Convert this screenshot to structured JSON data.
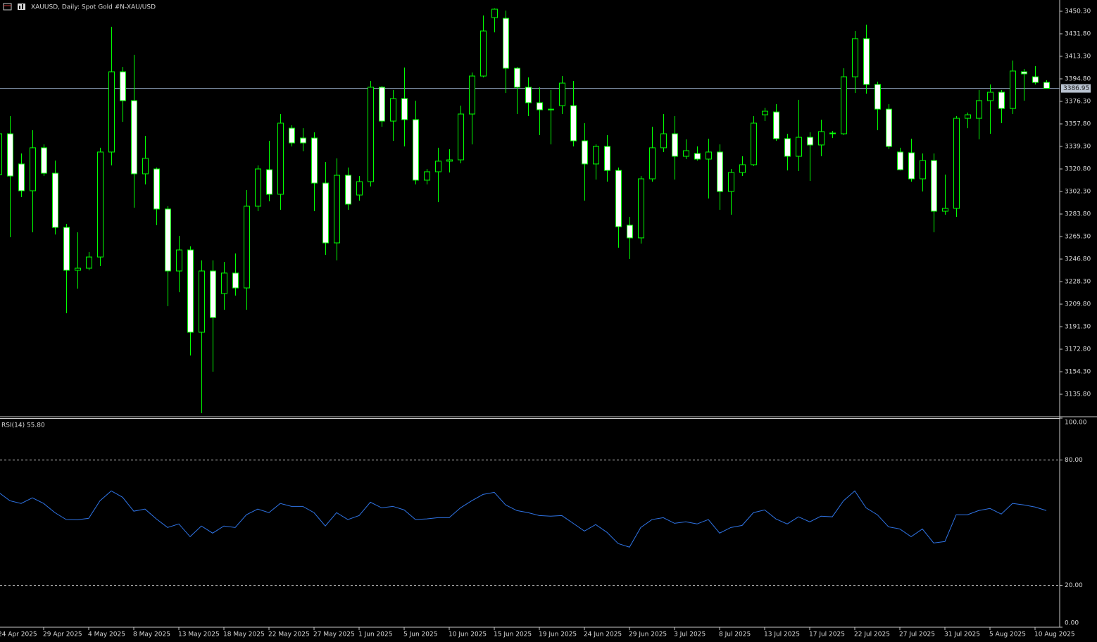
{
  "chart_data": [
    {
      "type": "candlestick",
      "title": "XAUUSD, Daily:  Spot Gold #N-XAU/USD",
      "categories": [
        "24 Apr 2025",
        null,
        null,
        null,
        "29 Apr 2025",
        null,
        null,
        null,
        "4 May 2025",
        null,
        null,
        null,
        "8 May 2025",
        null,
        null,
        null,
        "13 May 2025",
        null,
        null,
        null,
        "18 May 2025",
        null,
        null,
        null,
        "22 May 2025",
        null,
        null,
        null,
        "27 May 2025",
        null,
        null,
        null,
        "1 Jun 2025",
        null,
        null,
        null,
        "5 Jun 2025",
        null,
        null,
        null,
        "10 Jun 2025",
        null,
        null,
        null,
        "15 Jun 2025",
        null,
        null,
        null,
        "19 Jun 2025",
        null,
        null,
        null,
        "24 Jun 2025",
        null,
        null,
        null,
        "29 Jun 2025",
        null,
        null,
        null,
        "3 Jul 2025",
        null,
        null,
        null,
        "8 Jul 2025",
        null,
        null,
        null,
        "13 Jul 2025",
        null,
        null,
        null,
        "17 Jul 2025",
        null,
        null,
        null,
        "22 Jul 2025",
        null,
        null,
        null,
        "27 Jul 2025",
        null,
        null,
        null,
        "31 Jul 2025",
        null,
        null,
        null,
        "5 Aug 2025",
        null,
        null,
        null,
        "10 Aug 2025",
        null
      ],
      "open": [
        3316.2,
        3349.7,
        3324.9,
        3302.9,
        3338.2,
        3317.3,
        3272.8,
        3237.6,
        3239.3,
        3248.5,
        3334.7,
        3400.6,
        3376.9,
        3316.8,
        3320.8,
        3287.9,
        3237.0,
        3254.3,
        3186.7,
        3237.0,
        3218.5,
        3235.3,
        3223.1,
        3290.2,
        3320.2,
        3300.0,
        3354.3,
        3346.2,
        3346.2,
        3309.2,
        3260.1,
        3315.6,
        3299.4,
        3310.4,
        3387.9,
        3360.1,
        3378.6,
        3361.3,
        3311.6,
        3318.5,
        3327.2,
        3328.3,
        3365.9,
        3397.1,
        3445.1,
        3444.5,
        3403.5,
        3387.9,
        3375.2,
        3369.9,
        3372.8,
        3372.8,
        3343.9,
        3324.9,
        3339.3,
        3319.6,
        3274.6,
        3264.2,
        3312.7,
        3338.2,
        3349.7,
        3331.2,
        3333.5,
        3328.9,
        3334.7,
        3302.3,
        3317.9,
        3324.3,
        3365.3,
        3367.6,
        3345.7,
        3331.2,
        3346.8,
        3340.5,
        3350.3,
        3349.7,
        3396.5,
        3427.8,
        3390.2,
        3369.9,
        3334.7,
        3334.1,
        3312.7,
        3327.7,
        3286.1,
        3288.4,
        3362.4,
        3362.4,
        3376.9,
        3383.8,
        3370.5,
        3400.6,
        3396.5,
        3391.9
      ],
      "high": [
        3352.6,
        3364.2,
        3333.5,
        3352.6,
        3341.0,
        3327.7,
        3275.7,
        3268.8,
        3252.6,
        3338.2,
        3437.6,
        3404.6,
        3414.5,
        3348.0,
        3322.0,
        3290.2,
        3265.9,
        3257.2,
        3245.7,
        3245.7,
        3244.5,
        3251.4,
        3303.5,
        3323.7,
        3343.9,
        3365.9,
        3356.7,
        3354.3,
        3350.9,
        3326.6,
        3329.5,
        3322.0,
        3315.0,
        3393.1,
        3389.0,
        3385.6,
        3404.1,
        3376.9,
        3320.8,
        3338.2,
        3337.0,
        3372.8,
        3400.0,
        3446.8,
        3452.6,
        3450.9,
        3404.6,
        3396.0,
        3387.9,
        3385.6,
        3397.1,
        3393.1,
        3358.4,
        3341.0,
        3348.6,
        3322.0,
        3281.5,
        3315.0,
        3355.5,
        3365.9,
        3364.2,
        3345.1,
        3339.3,
        3345.7,
        3341.0,
        3320.8,
        3331.2,
        3364.2,
        3371.1,
        3374.0,
        3349.7,
        3377.5,
        3350.9,
        3361.3,
        3352.0,
        3403.5,
        3434.1,
        3439.3,
        3392.5,
        3374.0,
        3338.2,
        3345.7,
        3333.5,
        3333.5,
        3316.2,
        3364.2,
        3367.1,
        3385.6,
        3390.2,
        3385.6,
        3409.8,
        3402.9,
        3405.2,
        3393.7
      ],
      "low": [
        3312.1,
        3264.7,
        3297.7,
        3268.8,
        3315.0,
        3267.0,
        3202.3,
        3222.5,
        3237.6,
        3241.0,
        3323.7,
        3359.5,
        3289.0,
        3308.1,
        3274.6,
        3208.1,
        3219.6,
        3167.6,
        3120.2,
        3154.3,
        3205.2,
        3216.8,
        3205.2,
        3286.1,
        3294.2,
        3287.3,
        3339.3,
        3335.3,
        3286.1,
        3250.3,
        3245.7,
        3287.3,
        3294.8,
        3306.4,
        3355.5,
        3343.9,
        3339.3,
        3308.1,
        3308.1,
        3293.6,
        3317.9,
        3325.4,
        3341.0,
        3396.0,
        3433.0,
        3383.2,
        3365.9,
        3364.2,
        3348.6,
        3341.0,
        3365.9,
        3339.3,
        3294.8,
        3312.1,
        3310.4,
        3256.1,
        3246.8,
        3259.5,
        3310.4,
        3334.7,
        3312.1,
        3328.9,
        3327.7,
        3296.5,
        3287.3,
        3283.2,
        3315.0,
        3323.1,
        3360.1,
        3343.9,
        3319.6,
        3319.1,
        3311.0,
        3331.2,
        3346.2,
        3348.6,
        3383.2,
        3382.7,
        3352.6,
        3337.0,
        3319.6,
        3310.4,
        3302.3,
        3268.8,
        3283.2,
        3281.5,
        3354.3,
        3345.1,
        3349.7,
        3358.4,
        3365.9,
        3376.9,
        3390.2,
        3387.3
      ],
      "close": [
        3349.7,
        3315.0,
        3302.9,
        3338.2,
        3317.3,
        3272.8,
        3237.6,
        3239.3,
        3248.5,
        3334.7,
        3400.6,
        3376.9,
        3316.8,
        3329.5,
        3287.9,
        3237.0,
        3254.3,
        3186.7,
        3237.0,
        3198.8,
        3235.3,
        3223.1,
        3290.2,
        3320.8,
        3300.0,
        3358.4,
        3342.2,
        3342.2,
        3309.2,
        3260.1,
        3315.6,
        3291.9,
        3310.4,
        3387.9,
        3360.1,
        3378.6,
        3361.3,
        3311.6,
        3318.5,
        3327.2,
        3328.3,
        3365.9,
        3397.1,
        3434.1,
        3452.0,
        3403.5,
        3387.9,
        3375.2,
        3369.4,
        3369.4,
        3391.3,
        3343.9,
        3324.9,
        3339.3,
        3319.6,
        3273.4,
        3264.2,
        3312.7,
        3338.2,
        3349.7,
        3331.2,
        3335.8,
        3328.9,
        3334.7,
        3302.3,
        3317.9,
        3324.3,
        3358.4,
        3368.2,
        3345.7,
        3331.2,
        3346.8,
        3340.5,
        3351.5,
        3349.7,
        3396.5,
        3427.8,
        3390.2,
        3369.9,
        3339.3,
        3320.2,
        3312.7,
        3327.7,
        3286.1,
        3288.4,
        3362.4,
        3365.3,
        3376.9,
        3383.8,
        3370.5,
        3401.2,
        3398.9,
        3391.9,
        3386.95
      ],
      "up_color": "#000000",
      "down_color": "#ffffff",
      "wick_color": "#00ff00",
      "current_price": 3386.95,
      "price_line_color": "#8a9bb4",
      "ylim": [
        3117.9,
        3459.55
      ],
      "yticks": [
        {
          "value": 3450.3,
          "label": "3450.30"
        },
        {
          "value": 3431.8,
          "label": "3431.80"
        },
        {
          "value": 3413.3,
          "label": "3413.30"
        },
        {
          "value": 3394.8,
          "label": "3394.80"
        },
        {
          "value": 3376.3,
          "label": "3376.30"
        },
        {
          "value": 3357.8,
          "label": "3357.80"
        },
        {
          "value": 3339.3,
          "label": "3339.30"
        },
        {
          "value": 3320.8,
          "label": "3320.80"
        },
        {
          "value": 3302.3,
          "label": "3302.30"
        },
        {
          "value": 3283.8,
          "label": "3283.80"
        },
        {
          "value": 3265.3,
          "label": "3265.30"
        },
        {
          "value": 3246.8,
          "label": "3246.80"
        },
        {
          "value": 3228.3,
          "label": "3228.30"
        },
        {
          "value": 3209.8,
          "label": "3209.80"
        },
        {
          "value": 3191.3,
          "label": "3191.30"
        },
        {
          "value": 3172.8,
          "label": "3172.80"
        },
        {
          "value": 3154.3,
          "label": "3154.30"
        },
        {
          "value": 3135.8,
          "label": "3135.80"
        }
      ]
    },
    {
      "type": "line",
      "title": "RSI(14) 55.80",
      "color": "#2f74e6",
      "values": [
        64.5,
        60.5,
        59.2,
        61.9,
        59.2,
        54.8,
        51.5,
        51.4,
        52.1,
        60.5,
        65.2,
        62.2,
        55.5,
        56.5,
        51.8,
        47.7,
        49.4,
        43.3,
        48.4,
        45.0,
        48.4,
        47.7,
        53.8,
        56.5,
        54.8,
        59.2,
        57.8,
        57.8,
        54.8,
        48.4,
        54.8,
        51.5,
        53.4,
        59.8,
        57.1,
        57.8,
        56.1,
        51.5,
        51.8,
        52.4,
        52.4,
        57.1,
        60.5,
        63.5,
        64.5,
        58.5,
        55.8,
        54.8,
        53.4,
        53.1,
        53.4,
        49.7,
        46.0,
        49.1,
        45.4,
        40.0,
        38.3,
        47.7,
        51.5,
        52.4,
        49.7,
        50.4,
        49.4,
        51.5,
        45.0,
        47.7,
        48.7,
        54.8,
        56.1,
        51.8,
        49.4,
        52.8,
        50.4,
        53.1,
        52.8,
        60.5,
        65.2,
        57.1,
        53.8,
        48.0,
        47.0,
        43.3,
        47.0,
        40.3,
        41.0,
        53.8,
        53.8,
        55.8,
        56.8,
        54.1,
        59.2,
        58.5,
        57.5,
        55.8
      ],
      "ylim": [
        0,
        100
      ],
      "yticks": [
        {
          "value": 100,
          "label": "100.00"
        },
        {
          "value": 80,
          "label": "80.00"
        },
        {
          "value": 20,
          "label": "20.00"
        },
        {
          "value": 0,
          "label": "0.00"
        }
      ]
    }
  ]
}
